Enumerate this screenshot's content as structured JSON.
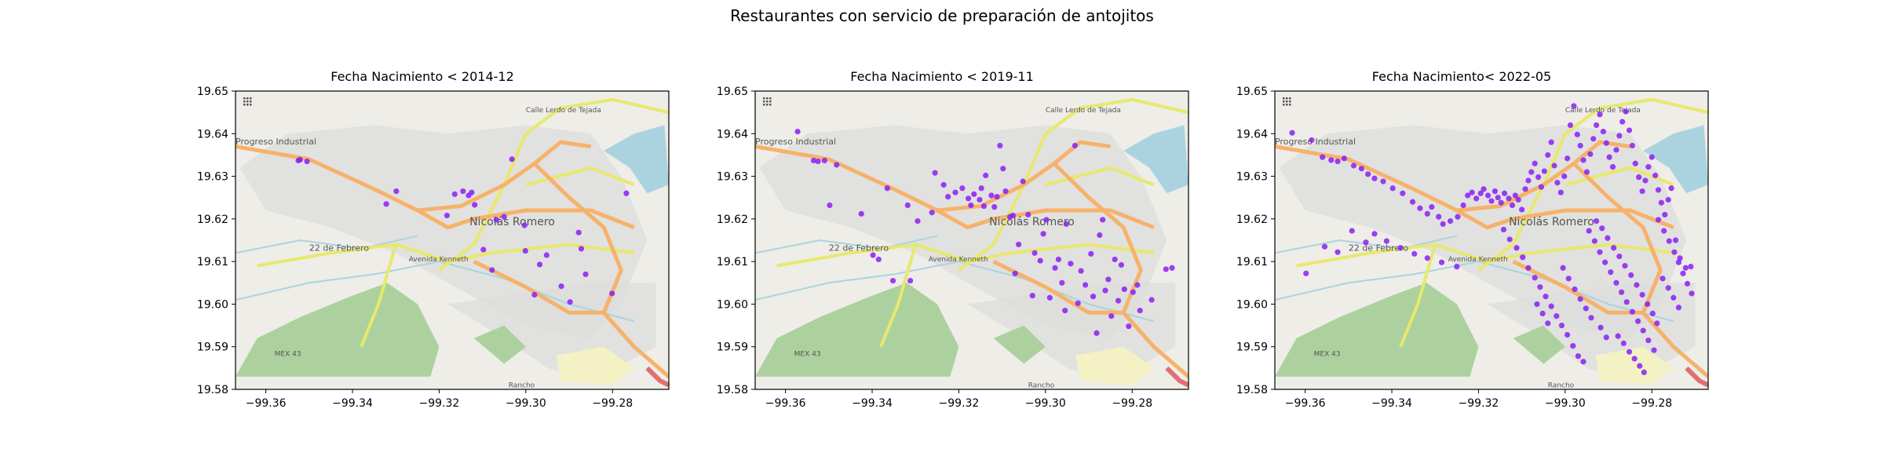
{
  "figure": {
    "title": "Restaurantes con servicio de preparación de antojitos"
  },
  "map": {
    "place_labels": [
      "Progreso Industrial",
      "22 de Febrero",
      "Nicolás Romero",
      "Avenida Kenneth",
      "Calle Lerdo de Tejada",
      "MEX 43",
      "Rancho"
    ],
    "colors": {
      "land": "#eeede8",
      "urban": "#dcdcdc",
      "park": "#acd19e",
      "water": "#aad3df",
      "primary_road": "#f6b26b",
      "secondary_road": "#e8e86c",
      "marker": "#8a1ef5"
    }
  },
  "chart_data": [
    {
      "type": "scatter",
      "title": "Fecha Nacimiento < 2014-12",
      "xlim": [
        -99.367,
        -99.267
      ],
      "ylim": [
        19.58,
        19.65
      ],
      "xticks": [
        -99.36,
        -99.34,
        -99.32,
        -99.3,
        -99.28
      ],
      "xtick_labels": [
        "−99.36",
        "−99.34",
        "−99.32",
        "−99.30",
        "−99.28"
      ],
      "yticks": [
        19.58,
        19.59,
        19.6,
        19.61,
        19.62,
        19.63,
        19.64,
        19.65
      ],
      "ytick_labels": [
        "19.58",
        "19.59",
        "19.60",
        "19.61",
        "19.62",
        "19.63",
        "19.64",
        "19.65"
      ],
      "points": [
        [
          -99.3525,
          19.6337
        ],
        [
          -99.3521,
          19.6339
        ],
        [
          -99.3505,
          19.6335
        ],
        [
          -99.3322,
          19.6235
        ],
        [
          -99.3299,
          19.6265
        ],
        [
          -99.3182,
          19.6208
        ],
        [
          -99.3164,
          19.6258
        ],
        [
          -99.3145,
          19.6265
        ],
        [
          -99.3132,
          19.6255
        ],
        [
          -99.3125,
          19.6262
        ],
        [
          -99.3118,
          19.6233
        ],
        [
          -99.3098,
          19.6128
        ],
        [
          -99.3068,
          19.6198
        ],
        [
          -99.3078,
          19.608
        ],
        [
          -99.305,
          19.6205
        ],
        [
          -99.3032,
          19.634
        ],
        [
          -99.3001,
          19.6125
        ],
        [
          -99.3003,
          19.6185
        ],
        [
          -99.298,
          19.6022
        ],
        [
          -99.2968,
          19.6093
        ],
        [
          -99.2952,
          19.6115
        ],
        [
          -99.2918,
          19.6042
        ],
        [
          -99.2898,
          19.6005
        ],
        [
          -99.2878,
          19.6168
        ],
        [
          -99.2872,
          19.613
        ],
        [
          -99.2862,
          19.607
        ],
        [
          -99.2801,
          19.6025
        ],
        [
          -99.2768,
          19.626
        ]
      ]
    },
    {
      "type": "scatter",
      "title": "Fecha Nacimiento < 2019-11",
      "xlim": [
        -99.367,
        -99.267
      ],
      "ylim": [
        19.58,
        19.65
      ],
      "xticks": [
        -99.36,
        -99.34,
        -99.32,
        -99.3,
        -99.28
      ],
      "xtick_labels": [
        "−99.36",
        "−99.34",
        "−99.32",
        "−99.30",
        "−99.28"
      ],
      "yticks": [
        19.58,
        19.59,
        19.6,
        19.61,
        19.62,
        19.63,
        19.64,
        19.65
      ],
      "ytick_labels": [
        "19.58",
        "19.59",
        "19.60",
        "19.61",
        "19.62",
        "19.63",
        "19.64",
        "19.65"
      ],
      "points": [
        [
          -99.3572,
          19.6405
        ],
        [
          -99.3535,
          19.6337
        ],
        [
          -99.3525,
          19.6335
        ],
        [
          -99.351,
          19.6337
        ],
        [
          -99.3498,
          19.6232
        ],
        [
          -99.3482,
          19.6327
        ],
        [
          -99.3425,
          19.6212
        ],
        [
          -99.3398,
          19.6115
        ],
        [
          -99.3365,
          19.6272
        ],
        [
          -99.3385,
          19.6105
        ],
        [
          -99.3352,
          19.6055
        ],
        [
          -99.3318,
          19.6232
        ],
        [
          -99.3312,
          19.6055
        ],
        [
          -99.3295,
          19.6195
        ],
        [
          -99.3262,
          19.6215
        ],
        [
          -99.3255,
          19.6308
        ],
        [
          -99.3235,
          19.628
        ],
        [
          -99.3225,
          19.6252
        ],
        [
          -99.3208,
          19.6262
        ],
        [
          -99.3192,
          19.6272
        ],
        [
          -99.3178,
          19.6248
        ],
        [
          -99.3172,
          19.6232
        ],
        [
          -99.3165,
          19.6258
        ],
        [
          -99.3152,
          19.6245
        ],
        [
          -99.3148,
          19.6272
        ],
        [
          -99.3142,
          19.623
        ],
        [
          -99.3138,
          19.6302
        ],
        [
          -99.3125,
          19.6255
        ],
        [
          -99.3118,
          19.6228
        ],
        [
          -99.3112,
          19.6252
        ],
        [
          -99.3105,
          19.6372
        ],
        [
          -99.3098,
          19.6318
        ],
        [
          -99.3092,
          19.6265
        ],
        [
          -99.3082,
          19.6205
        ],
        [
          -99.3075,
          19.6208
        ],
        [
          -99.307,
          19.6072
        ],
        [
          -99.3062,
          19.614
        ],
        [
          -99.3052,
          19.6288
        ],
        [
          -99.304,
          19.621
        ],
        [
          -99.303,
          19.602
        ],
        [
          -99.3025,
          19.612
        ],
        [
          -99.3012,
          19.6102
        ],
        [
          -99.3005,
          19.6165
        ],
        [
          -99.2998,
          19.6198
        ],
        [
          -99.299,
          19.6015
        ],
        [
          -99.2978,
          19.6085
        ],
        [
          -99.297,
          19.6105
        ],
        [
          -99.2962,
          19.605
        ],
        [
          -99.2955,
          19.5985
        ],
        [
          -99.2952,
          19.6188
        ],
        [
          -99.2942,
          19.6095
        ],
        [
          -99.2932,
          19.6372
        ],
        [
          -99.2925,
          19.6002
        ],
        [
          -99.2918,
          19.6078
        ],
        [
          -99.2908,
          19.6045
        ],
        [
          -99.2895,
          19.6118
        ],
        [
          -99.289,
          19.6018
        ],
        [
          -99.2882,
          19.5932
        ],
        [
          -99.2875,
          19.6162
        ],
        [
          -99.2868,
          19.6198
        ],
        [
          -99.2862,
          19.6032
        ],
        [
          -99.2855,
          19.6058
        ],
        [
          -99.2848,
          19.5972
        ],
        [
          -99.284,
          19.6105
        ],
        [
          -99.2832,
          19.6008
        ],
        [
          -99.2825,
          19.6092
        ],
        [
          -99.2818,
          19.6035
        ],
        [
          -99.2808,
          19.5948
        ],
        [
          -99.2798,
          19.6028
        ],
        [
          -99.2788,
          19.6045
        ],
        [
          -99.2782,
          19.5985
        ],
        [
          -99.2755,
          19.601
        ],
        [
          -99.2722,
          19.6082
        ],
        [
          -99.2708,
          19.6085
        ]
      ]
    },
    {
      "type": "scatter",
      "title": "Fecha Nacimiento< 2022-05",
      "xlim": [
        -99.367,
        -99.267
      ],
      "ylim": [
        19.58,
        19.65
      ],
      "xticks": [
        -99.36,
        -99.34,
        -99.32,
        -99.3,
        -99.28
      ],
      "xtick_labels": [
        "−99.36",
        "−99.34",
        "−99.32",
        "−99.30",
        "−99.28"
      ],
      "yticks": [
        19.58,
        19.59,
        19.6,
        19.61,
        19.62,
        19.63,
        19.64,
        19.65
      ],
      "ytick_labels": [
        "19.58",
        "19.59",
        "19.60",
        "19.61",
        "19.62",
        "19.63",
        "19.64",
        "19.65"
      ],
      "points": [
        [
          -99.363,
          19.6402
        ],
        [
          -99.3585,
          19.6385
        ],
        [
          -99.356,
          19.6345
        ],
        [
          -99.354,
          19.6338
        ],
        [
          -99.3525,
          19.6335
        ],
        [
          -99.351,
          19.6342
        ],
        [
          -99.3488,
          19.6325
        ],
        [
          -99.347,
          19.6318
        ],
        [
          -99.3455,
          19.6305
        ],
        [
          -99.344,
          19.6295
        ],
        [
          -99.342,
          19.6288
        ],
        [
          -99.3398,
          19.6272
        ],
        [
          -99.3375,
          19.626
        ],
        [
          -99.3352,
          19.624
        ],
        [
          -99.3335,
          19.6225
        ],
        [
          -99.3318,
          19.6212
        ],
        [
          -99.3308,
          19.6228
        ],
        [
          -99.3292,
          19.6205
        ],
        [
          -99.3282,
          19.6188
        ],
        [
          -99.3265,
          19.6195
        ],
        [
          -99.3248,
          19.6205
        ],
        [
          -99.3235,
          19.6232
        ],
        [
          -99.3225,
          19.6255
        ],
        [
          -99.3215,
          19.6262
        ],
        [
          -99.3205,
          19.6248
        ],
        [
          -99.3195,
          19.626
        ],
        [
          -99.3188,
          19.627
        ],
        [
          -99.3178,
          19.6255
        ],
        [
          -99.317,
          19.6242
        ],
        [
          -99.3162,
          19.6265
        ],
        [
          -99.3155,
          19.625
        ],
        [
          -99.3148,
          19.6238
        ],
        [
          -99.314,
          19.626
        ],
        [
          -99.313,
          19.6248
        ],
        [
          -99.3122,
          19.6232
        ],
        [
          -99.3115,
          19.6255
        ],
        [
          -99.3108,
          19.6245
        ],
        [
          -99.31,
          19.6222
        ],
        [
          -99.3092,
          19.627
        ],
        [
          -99.3085,
          19.629
        ],
        [
          -99.3078,
          19.631
        ],
        [
          -99.307,
          19.633
        ],
        [
          -99.3062,
          19.6298
        ],
        [
          -99.3055,
          19.6275
        ],
        [
          -99.3048,
          19.6312
        ],
        [
          -99.304,
          19.635
        ],
        [
          -99.3032,
          19.638
        ],
        [
          -99.3025,
          19.6325
        ],
        [
          -99.3018,
          19.6285
        ],
        [
          -99.301,
          19.6262
        ],
        [
          -99.3002,
          19.63
        ],
        [
          -99.2995,
          19.6342
        ],
        [
          -99.2988,
          19.642
        ],
        [
          -99.298,
          19.6465
        ],
        [
          -99.2972,
          19.6398
        ],
        [
          -99.2965,
          19.6372
        ],
        [
          -99.2958,
          19.6338
        ],
        [
          -99.295,
          19.631
        ],
        [
          -99.2942,
          19.6352
        ],
        [
          -99.2935,
          19.6388
        ],
        [
          -99.2928,
          19.642
        ],
        [
          -99.292,
          19.6445
        ],
        [
          -99.2912,
          19.6405
        ],
        [
          -99.2905,
          19.6378
        ],
        [
          -99.2898,
          19.6345
        ],
        [
          -99.289,
          19.6322
        ],
        [
          -99.2882,
          19.6362
        ],
        [
          -99.2875,
          19.6395
        ],
        [
          -99.2868,
          19.6428
        ],
        [
          -99.286,
          19.6452
        ],
        [
          -99.2852,
          19.6408
        ],
        [
          -99.2845,
          19.6372
        ],
        [
          -99.2838,
          19.633
        ],
        [
          -99.283,
          19.6298
        ],
        [
          -99.2822,
          19.6265
        ],
        [
          -99.2815,
          19.629
        ],
        [
          -99.2808,
          19.6322
        ],
        [
          -99.28,
          19.6345
        ],
        [
          -99.2792,
          19.6302
        ],
        [
          -99.2785,
          19.6268
        ],
        [
          -99.2778,
          19.6238
        ],
        [
          -99.277,
          19.621
        ],
        [
          -99.2762,
          19.6245
        ],
        [
          -99.2755,
          19.6272
        ],
        [
          -99.2745,
          19.615
        ],
        [
          -99.2735,
          19.6108
        ],
        [
          -99.2722,
          19.6085
        ],
        [
          -99.271,
          19.6088
        ],
        [
          -99.3142,
          19.6175
        ],
        [
          -99.3128,
          19.6152
        ],
        [
          -99.3112,
          19.6132
        ],
        [
          -99.3098,
          19.611
        ],
        [
          -99.3085,
          19.6085
        ],
        [
          -99.307,
          19.6062
        ],
        [
          -99.3058,
          19.604
        ],
        [
          -99.3045,
          19.6018
        ],
        [
          -99.3032,
          19.5995
        ],
        [
          -99.302,
          19.5972
        ],
        [
          -99.3008,
          19.595
        ],
        [
          -99.2995,
          19.5928
        ],
        [
          -99.2982,
          19.5902
        ],
        [
          -99.297,
          19.5878
        ],
        [
          -99.2958,
          19.5865
        ],
        [
          -99.2945,
          19.6172
        ],
        [
          -99.2932,
          19.6148
        ],
        [
          -99.292,
          19.6122
        ],
        [
          -99.2908,
          19.6098
        ],
        [
          -99.2895,
          19.6075
        ],
        [
          -99.2882,
          19.605
        ],
        [
          -99.287,
          19.6028
        ],
        [
          -99.2858,
          19.6005
        ],
        [
          -99.2845,
          19.5982
        ],
        [
          -99.2832,
          19.596
        ],
        [
          -99.282,
          19.5938
        ],
        [
          -99.2808,
          19.5915
        ],
        [
          -99.2795,
          19.5892
        ],
        [
          -99.2785,
          19.6198
        ],
        [
          -99.2772,
          19.6172
        ],
        [
          -99.276,
          19.6148
        ],
        [
          -99.2748,
          19.6122
        ],
        [
          -99.2738,
          19.6098
        ],
        [
          -99.2728,
          19.6072
        ],
        [
          -99.2718,
          19.6048
        ],
        [
          -99.2708,
          19.6025
        ],
        [
          -99.3005,
          19.6085
        ],
        [
          -99.2992,
          19.606
        ],
        [
          -99.2978,
          19.6035
        ],
        [
          -99.2965,
          19.6012
        ],
        [
          -99.2952,
          19.599
        ],
        [
          -99.294,
          19.5968
        ],
        [
          -99.2928,
          19.6195
        ],
        [
          -99.2915,
          19.6178
        ],
        [
          -99.2902,
          19.6155
        ],
        [
          -99.2888,
          19.6132
        ],
        [
          -99.2875,
          19.6112
        ],
        [
          -99.2862,
          19.609
        ],
        [
          -99.2848,
          19.6068
        ],
        [
          -99.2835,
          19.6045
        ],
        [
          -99.2822,
          19.6022
        ],
        [
          -99.281,
          19.6
        ],
        [
          -99.2798,
          19.5978
        ],
        [
          -99.2788,
          19.5955
        ],
        [
          -99.2775,
          19.606
        ],
        [
          -99.2762,
          19.6038
        ],
        [
          -99.275,
          19.6015
        ],
        [
          -99.2738,
          19.5992
        ],
        [
          -99.2878,
          19.5925
        ],
        [
          -99.2865,
          19.5908
        ],
        [
          -99.2852,
          19.5888
        ],
        [
          -99.284,
          19.5872
        ],
        [
          -99.2828,
          19.5855
        ],
        [
          -99.2818,
          19.584
        ],
        [
          -99.3065,
          19.6
        ],
        [
          -99.3052,
          19.5978
        ],
        [
          -99.304,
          19.5955
        ],
        [
          -99.2918,
          19.5945
        ],
        [
          -99.2905,
          19.5922
        ],
        [
          -99.344,
          19.6165
        ],
        [
          -99.3412,
          19.6148
        ],
        [
          -99.338,
          19.6132
        ],
        [
          -99.3348,
          19.6118
        ],
        [
          -99.3318,
          19.6108
        ],
        [
          -99.3285,
          19.6098
        ],
        [
          -99.325,
          19.6088
        ],
        [
          -99.3555,
          19.6135
        ],
        [
          -99.3525,
          19.6122
        ],
        [
          -99.3492,
          19.6172
        ],
        [
          -99.346,
          19.6145
        ],
        [
          -99.3598,
          19.6072
        ]
      ]
    }
  ]
}
